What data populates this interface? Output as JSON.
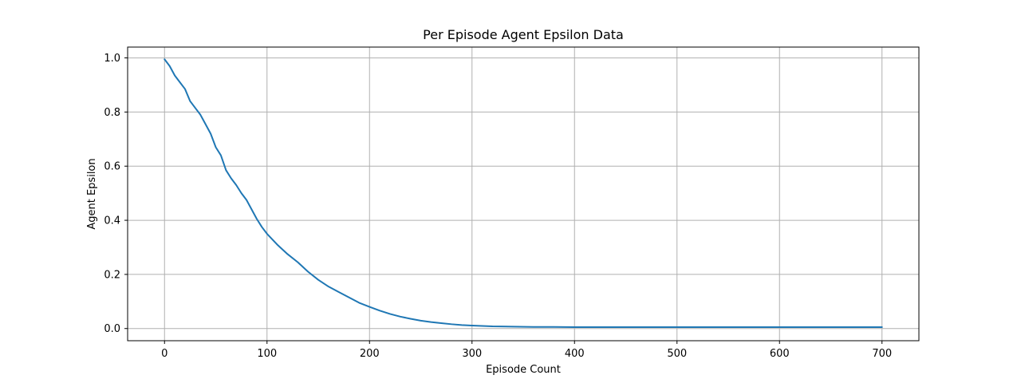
{
  "chart_data": {
    "type": "line",
    "title": "Per Episode Agent Epsilon Data",
    "xlabel": "Episode Count",
    "ylabel": "Agent Epsilon",
    "xlim": [
      -36,
      736
    ],
    "ylim": [
      -0.045,
      1.04
    ],
    "xticks": [
      0,
      100,
      200,
      300,
      400,
      500,
      600,
      700
    ],
    "xtick_labels": [
      "0",
      "100",
      "200",
      "300",
      "400",
      "500",
      "600",
      "700"
    ],
    "yticks": [
      0.0,
      0.2,
      0.4,
      0.6,
      0.8,
      1.0
    ],
    "ytick_labels": [
      "0.0",
      "0.2",
      "0.4",
      "0.6",
      "0.8",
      "1.0"
    ],
    "grid": true,
    "colors": {
      "line": "#1f77b4",
      "grid": "#b0b0b0",
      "axes": "#000000"
    },
    "series": [
      {
        "x": [
          0,
          5,
          10,
          15,
          20,
          25,
          30,
          35,
          40,
          45,
          50,
          55,
          60,
          65,
          70,
          75,
          80,
          85,
          90,
          95,
          100,
          110,
          120,
          130,
          140,
          150,
          160,
          170,
          180,
          190,
          200,
          210,
          220,
          230,
          240,
          250,
          260,
          270,
          280,
          290,
          300,
          320,
          340,
          360,
          380,
          400,
          450,
          500,
          550,
          600,
          650,
          700
        ],
        "values": [
          0.995,
          0.97,
          0.935,
          0.91,
          0.885,
          0.84,
          0.815,
          0.79,
          0.755,
          0.72,
          0.67,
          0.64,
          0.585,
          0.555,
          0.53,
          0.5,
          0.475,
          0.44,
          0.405,
          0.375,
          0.35,
          0.31,
          0.275,
          0.245,
          0.21,
          0.18,
          0.155,
          0.135,
          0.115,
          0.095,
          0.08,
          0.066,
          0.054,
          0.044,
          0.036,
          0.029,
          0.024,
          0.02,
          0.016,
          0.013,
          0.011,
          0.008,
          0.007,
          0.006,
          0.006,
          0.005,
          0.005,
          0.005,
          0.005,
          0.005,
          0.005,
          0.005
        ]
      }
    ]
  }
}
